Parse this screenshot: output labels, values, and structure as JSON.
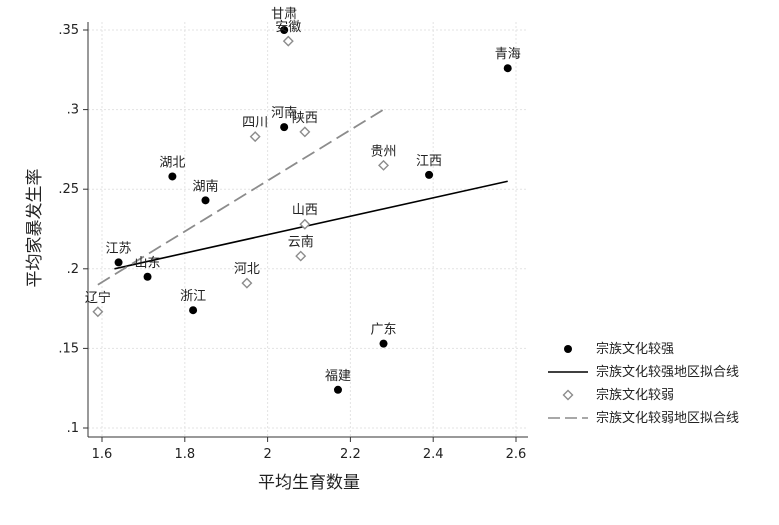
{
  "chart_data": {
    "type": "scatter",
    "xlabel": "平均生育数量",
    "ylabel": "平均家暴发生率",
    "xlim": [
      1.6,
      2.6
    ],
    "ylim": [
      0.1,
      0.35
    ],
    "x_ticks": [
      {
        "value": 1.6,
        "label": "1.6"
      },
      {
        "value": 1.8,
        "label": "1.8"
      },
      {
        "value": 2.0,
        "label": "2"
      },
      {
        "value": 2.2,
        "label": "2.2"
      },
      {
        "value": 2.4,
        "label": "2.4"
      },
      {
        "value": 2.6,
        "label": "2.6"
      }
    ],
    "y_ticks": [
      {
        "value": 0.1,
        "label": ".1"
      },
      {
        "value": 0.15,
        "label": ".15"
      },
      {
        "value": 0.2,
        "label": ".2"
      },
      {
        "value": 0.25,
        "label": ".25"
      },
      {
        "value": 0.3,
        "label": ".3"
      },
      {
        "value": 0.35,
        "label": ".35"
      }
    ],
    "grid": true,
    "legend_position": "right",
    "series": [
      {
        "name": "宗族文化较强",
        "marker": "filled-circle",
        "color": "#000000",
        "points": [
          {
            "label": "青海",
            "x": 2.58,
            "y": 0.326
          },
          {
            "label": "甘肃",
            "x": 2.04,
            "y": 0.35
          },
          {
            "label": "河南",
            "x": 2.04,
            "y": 0.289
          },
          {
            "label": "江西",
            "x": 2.39,
            "y": 0.259
          },
          {
            "label": "湖北",
            "x": 1.77,
            "y": 0.258
          },
          {
            "label": "湖南",
            "x": 1.85,
            "y": 0.243
          },
          {
            "label": "江苏",
            "x": 1.64,
            "y": 0.204
          },
          {
            "label": "山东",
            "x": 1.71,
            "y": 0.195
          },
          {
            "label": "浙江",
            "x": 1.82,
            "y": 0.174
          },
          {
            "label": "广东",
            "x": 2.28,
            "y": 0.153
          },
          {
            "label": "福建",
            "x": 2.17,
            "y": 0.124
          }
        ]
      },
      {
        "name": "宗族文化较强地区拟合线",
        "line": "solid",
        "color": "#000000",
        "x": [
          1.63,
          2.58
        ],
        "y": [
          0.2,
          0.255
        ]
      },
      {
        "name": "宗族文化较弱",
        "marker": "hollow-diamond",
        "color": "#8c8c8c",
        "points": [
          {
            "label": "安徽",
            "x": 2.05,
            "y": 0.343
          },
          {
            "label": "四川",
            "x": 1.97,
            "y": 0.283
          },
          {
            "label": "陕西",
            "x": 2.09,
            "y": 0.286
          },
          {
            "label": "贵州",
            "x": 2.28,
            "y": 0.265
          },
          {
            "label": "山西",
            "x": 2.09,
            "y": 0.228
          },
          {
            "label": "云南",
            "x": 2.08,
            "y": 0.208
          },
          {
            "label": "河北",
            "x": 1.95,
            "y": 0.191
          },
          {
            "label": "辽宁",
            "x": 1.59,
            "y": 0.173
          }
        ]
      },
      {
        "name": "宗族文化较弱地区拟合线",
        "line": "dashed",
        "color": "#8c8c8c",
        "x": [
          1.59,
          2.28
        ],
        "y": [
          0.19,
          0.3
        ]
      }
    ]
  }
}
